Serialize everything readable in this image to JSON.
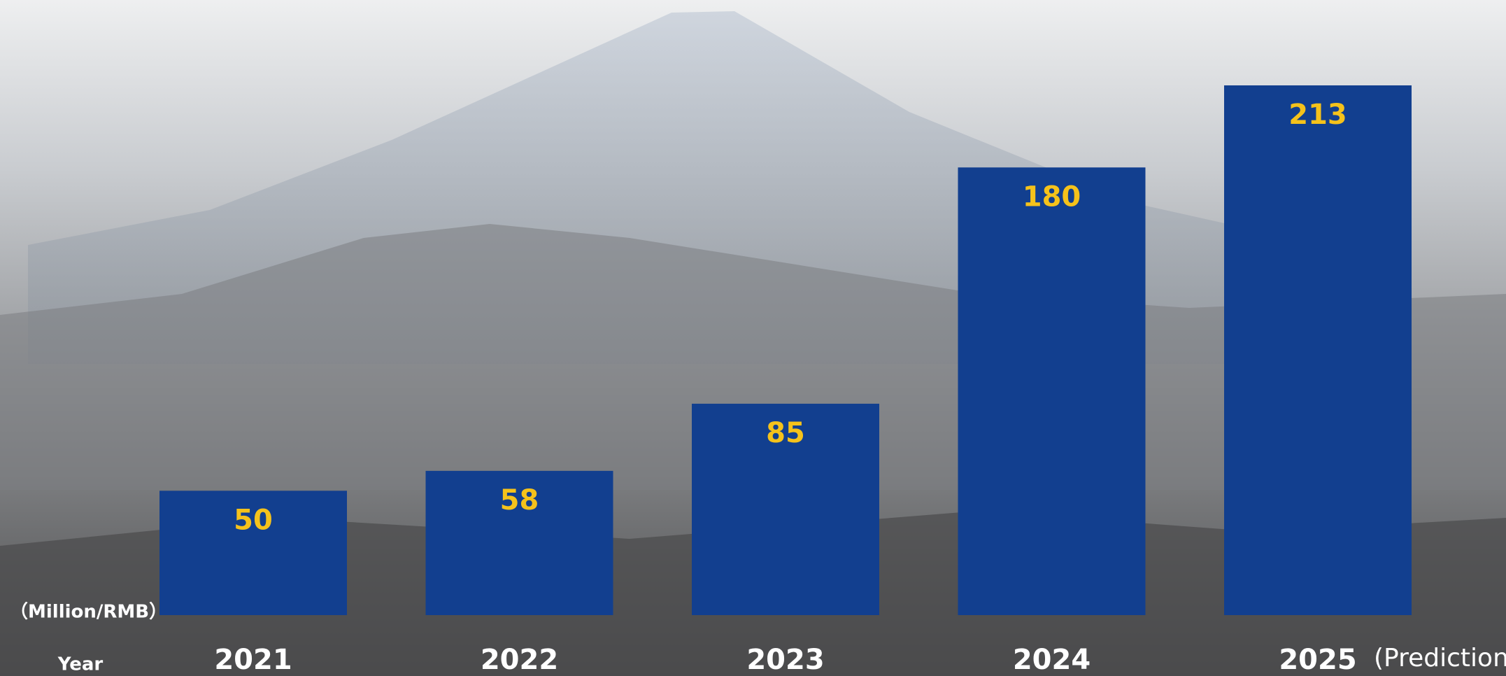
{
  "chart_data": {
    "type": "bar",
    "categories": [
      "2021",
      "2022",
      "2023",
      "2024",
      "2025"
    ],
    "values": [
      50,
      58,
      85,
      180,
      213
    ],
    "color": "#123f8f",
    "value_label_color": "#f5c21b",
    "x_label": "Year",
    "y_label": "（Million/RMB）",
    "annotations": [
      {
        "text": "(Prediction)",
        "category_index": 4
      }
    ]
  }
}
